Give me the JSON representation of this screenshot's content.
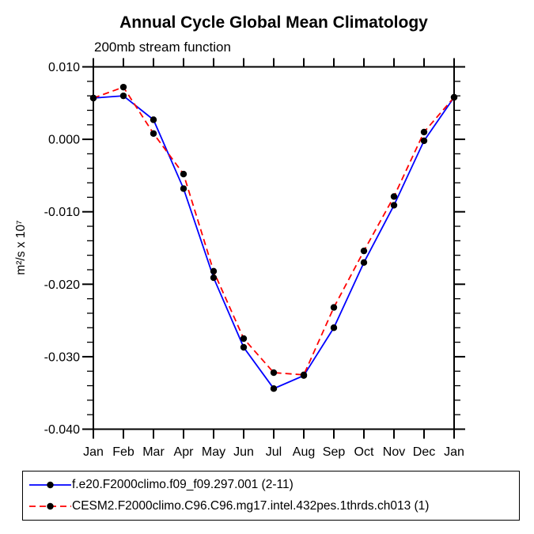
{
  "chart_data": {
    "type": "line",
    "title": "Annual Cycle Global Mean Climatology",
    "subtitle": "200mb stream function",
    "xlabel": "",
    "ylabel": "m²/s x 10⁷",
    "categories": [
      "Jan",
      "Feb",
      "Mar",
      "Apr",
      "May",
      "Jun",
      "Jul",
      "Aug",
      "Sep",
      "Oct",
      "Nov",
      "Dec",
      "Jan"
    ],
    "ylim": [
      -0.04,
      0.01
    ],
    "ytick_major": [
      0.01,
      0.0,
      -0.01,
      -0.02,
      -0.03,
      -0.04
    ],
    "ytick_labels": [
      "0.010",
      "0.000",
      "-0.010",
      "-0.020",
      "-0.030",
      "-0.040"
    ],
    "ytick_minor_step": 0.002,
    "grid": false,
    "legend_position": "bottom-left-box",
    "axis_color": "#000000",
    "background_color": "#ffffff",
    "series": [
      {
        "name": "f.e20.F2000climo.f09_f09.297.001 (2-11)",
        "color": "#0000ff",
        "style": "solid",
        "marker": "filled-circle",
        "marker_color": "#000000",
        "values": [
          0.0057,
          0.006,
          0.0027,
          -0.0068,
          -0.0191,
          -0.0287,
          -0.0344,
          -0.0326,
          -0.026,
          -0.017,
          -0.0091,
          -0.0002,
          0.0058
        ]
      },
      {
        "name": "CESM2.F2000climo.C96.C96.mg17.intel.432pes.1thrds.ch013 (1)",
        "color": "#ff0000",
        "style": "dashed",
        "marker": "filled-circle",
        "marker_color": "#000000",
        "values": [
          0.0057,
          0.0072,
          0.0008,
          -0.0048,
          -0.0182,
          -0.0275,
          -0.0322,
          -0.0325,
          -0.0232,
          -0.0154,
          -0.0079,
          0.001,
          0.0058
        ]
      }
    ]
  }
}
